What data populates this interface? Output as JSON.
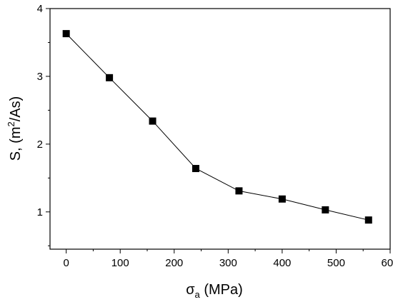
{
  "chart_data": {
    "type": "line",
    "xlabel_main": "σ",
    "xlabel_sub": "a",
    "xlabel_unit": " (MPa)",
    "ylabel_main": "S, (m",
    "ylabel_sup": "2",
    "ylabel_unit": "/As)",
    "x": [
      0,
      80,
      160,
      240,
      320,
      400,
      480,
      560
    ],
    "y": [
      3.63,
      2.98,
      2.34,
      1.64,
      1.31,
      1.19,
      1.03,
      0.88
    ],
    "xlim": [
      -30,
      600
    ],
    "ylim": [
      0.45,
      4
    ],
    "xticks": [
      "0",
      "100",
      "200",
      "300",
      "400",
      "500",
      "600"
    ],
    "yticks": [
      "1",
      "2",
      "3",
      "4"
    ],
    "marker": "square",
    "line_color": "#000000",
    "marker_color": "#000000",
    "grid": false,
    "legend": "none"
  }
}
